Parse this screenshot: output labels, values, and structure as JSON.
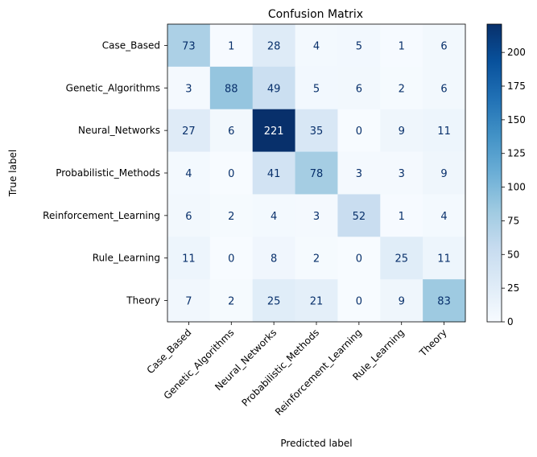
{
  "chart_data": {
    "type": "heatmap",
    "title": "Confusion Matrix",
    "xlabel": "Predicted label",
    "ylabel": "True label",
    "x_categories": [
      "Case_Based",
      "Genetic_Algorithms",
      "Neural_Networks",
      "Probabilistic_Methods",
      "Reinforcement_Learning",
      "Rule_Learning",
      "Theory"
    ],
    "y_categories": [
      "Case_Based",
      "Genetic_Algorithms",
      "Neural_Networks",
      "Probabilistic_Methods",
      "Reinforcement_Learning",
      "Rule_Learning",
      "Theory"
    ],
    "values": [
      [
        73,
        1,
        28,
        4,
        5,
        1,
        6
      ],
      [
        3,
        88,
        49,
        5,
        6,
        2,
        6
      ],
      [
        27,
        6,
        221,
        35,
        0,
        9,
        11
      ],
      [
        4,
        0,
        41,
        78,
        3,
        3,
        9
      ],
      [
        6,
        2,
        4,
        3,
        52,
        1,
        4
      ],
      [
        11,
        0,
        8,
        2,
        0,
        25,
        11
      ],
      [
        7,
        2,
        25,
        21,
        0,
        9,
        83
      ]
    ],
    "colormap": "Blues",
    "value_range": [
      0,
      221
    ],
    "colorbar_ticks": [
      0,
      25,
      50,
      75,
      100,
      125,
      150,
      175,
      200
    ],
    "colors": {
      "low_text": "#08306b",
      "high_text": "#ffffff"
    }
  }
}
